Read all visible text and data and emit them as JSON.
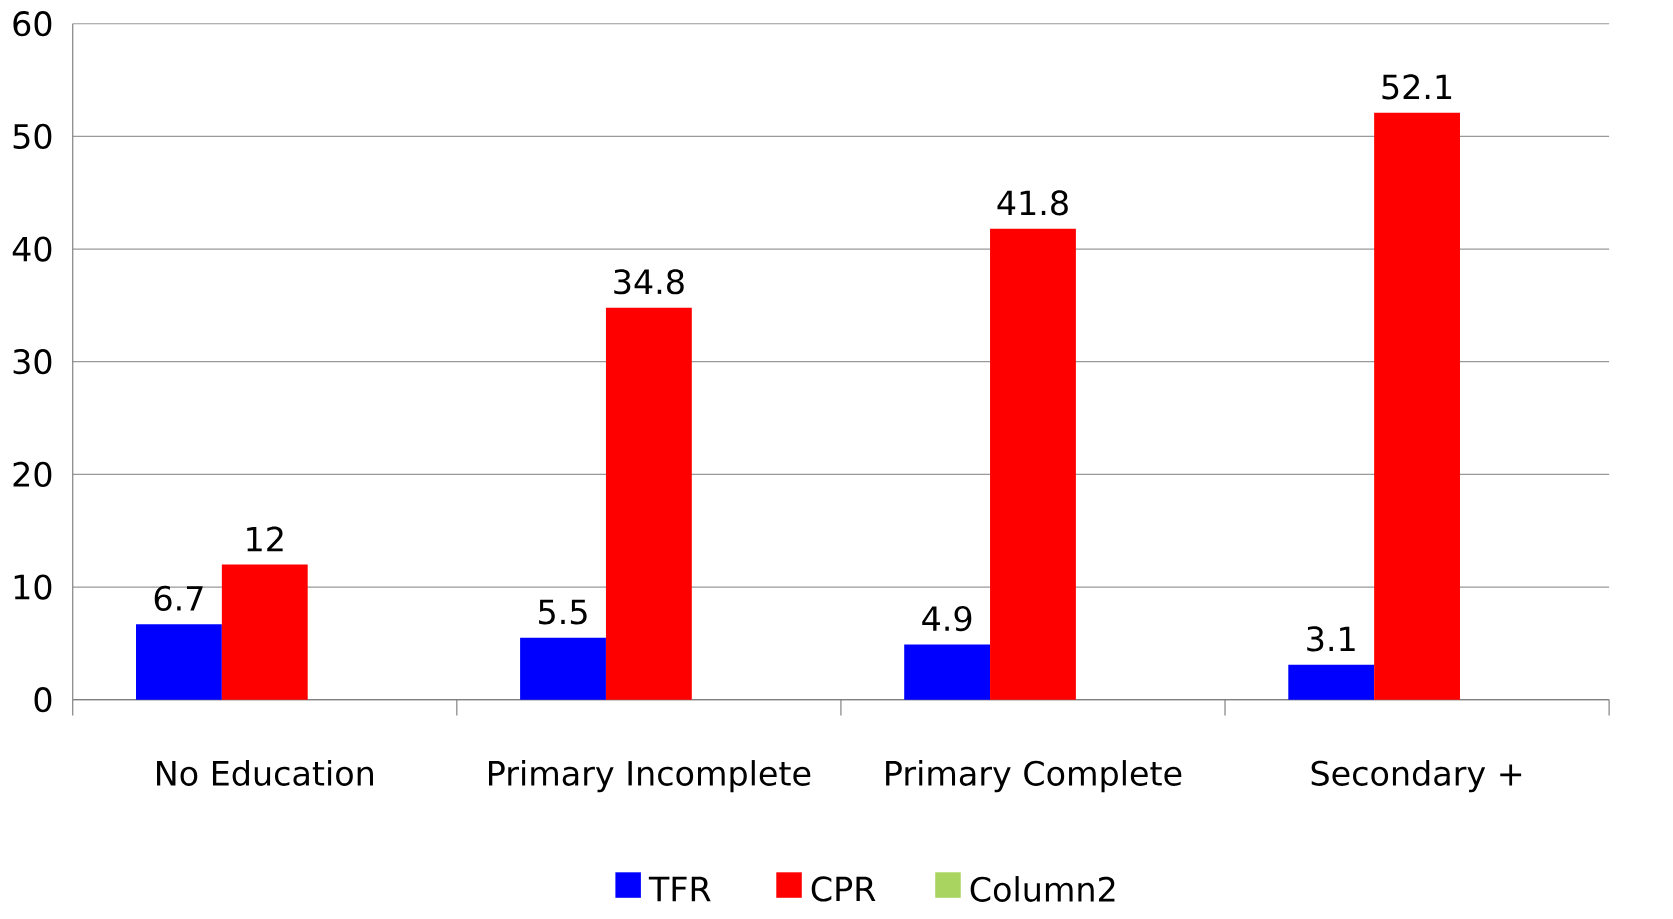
{
  "chart_data": {
    "type": "bar",
    "categories": [
      "No Education",
      "Primary Incomplete",
      "Primary Complete",
      "Secondary +"
    ],
    "series": [
      {
        "name": "TFR",
        "color": "#0000ff",
        "values": [
          6.7,
          5.5,
          4.9,
          3.1
        ]
      },
      {
        "name": "CPR",
        "color": "#ff0000",
        "values": [
          12,
          34.8,
          41.8,
          52.1
        ]
      },
      {
        "name": "Column2",
        "color": "#a9d45f",
        "values": [
          null,
          null,
          null,
          null
        ]
      }
    ],
    "ylim": [
      0,
      60
    ],
    "yticks": [
      0,
      10,
      20,
      30,
      40,
      50,
      60
    ],
    "grid": "y",
    "legend": "bottom",
    "data_labels": true
  }
}
